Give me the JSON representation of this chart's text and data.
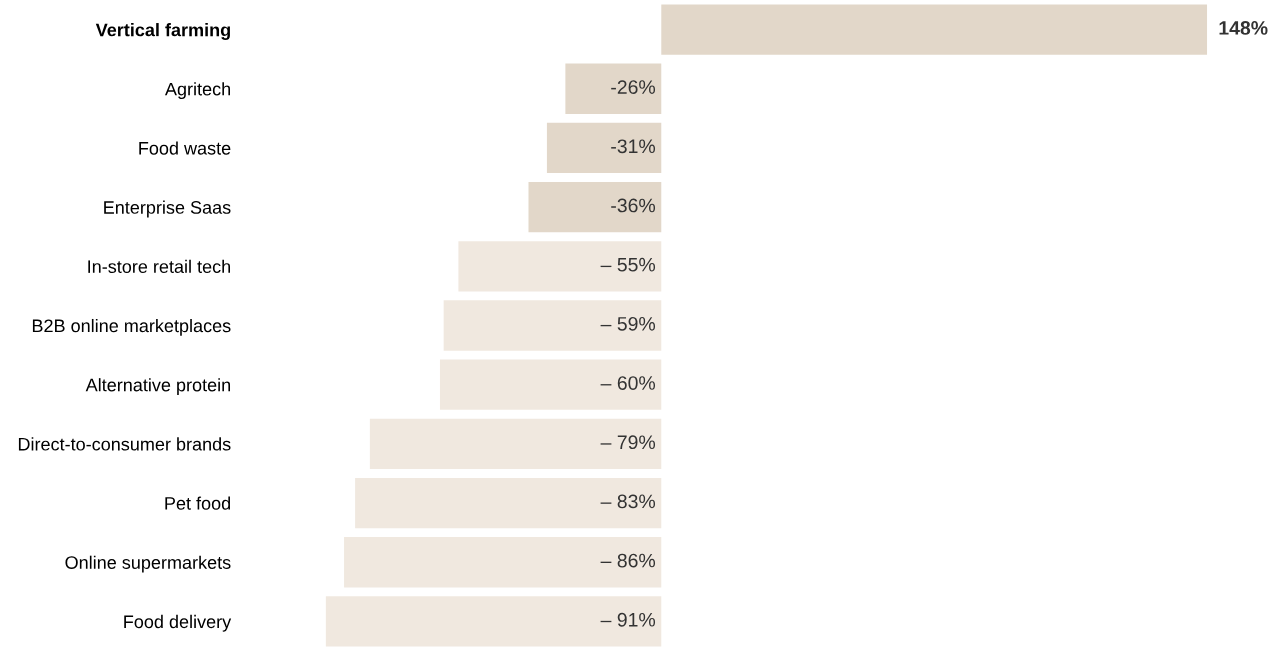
{
  "chart_data": {
    "type": "bar",
    "orientation": "horizontal",
    "tick_labels": "y",
    "grid": false,
    "categories": [
      "Vertical farming",
      "Agritech",
      "Food waste",
      "Enterprise Saas",
      "In-store retail tech",
      "B2B online marketplaces",
      "Alternative protein",
      "Direct-to-consumer brands",
      "Pet food",
      "Online supermarkets",
      "Food delivery"
    ],
    "values": [
      148,
      -26,
      -31,
      -36,
      -55,
      -59,
      -60,
      -79,
      -83,
      -86,
      -91
    ],
    "value_labels": [
      "148%",
      "-26%",
      "-31%",
      "-36%",
      "– 55%",
      "– 59%",
      "– 60%",
      "– 79%",
      "– 83%",
      "– 86%",
      "– 91%"
    ],
    "colors": [
      "#e2d7c9",
      "#e2d7c9",
      "#e2d7c9",
      "#e2d7c9",
      "#f0e8df",
      "#f0e8df",
      "#f0e8df",
      "#f0e8df",
      "#f0e8df",
      "#f0e8df",
      "#f0e8df"
    ]
  }
}
